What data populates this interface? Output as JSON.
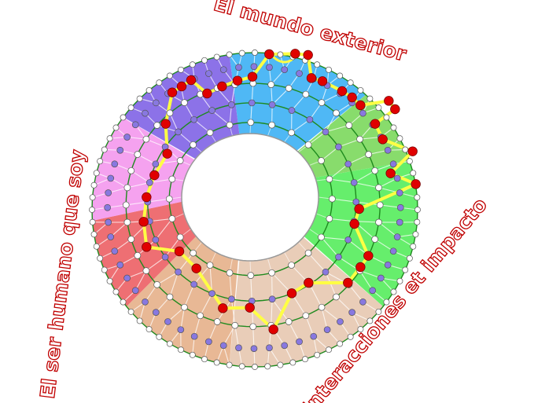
{
  "labels": {
    "top": "El mundo exterior",
    "left": "El ser humano que soy",
    "bottom_right": "Interacciones et impacto"
  },
  "colors": {
    "sectors": [
      "#4fb8f5",
      "#88dc6c",
      "#66ee6c",
      "#e9cdb8",
      "#e8b895",
      "#ee6f73",
      "#f5a2ef",
      "#8c72e8"
    ],
    "ring_lines": "#1e8a1e",
    "path": "#ffff44",
    "path_nodes": "#e00000",
    "inner_nodes": "#8878e0",
    "outer_nodes": "#ffffff"
  }
}
